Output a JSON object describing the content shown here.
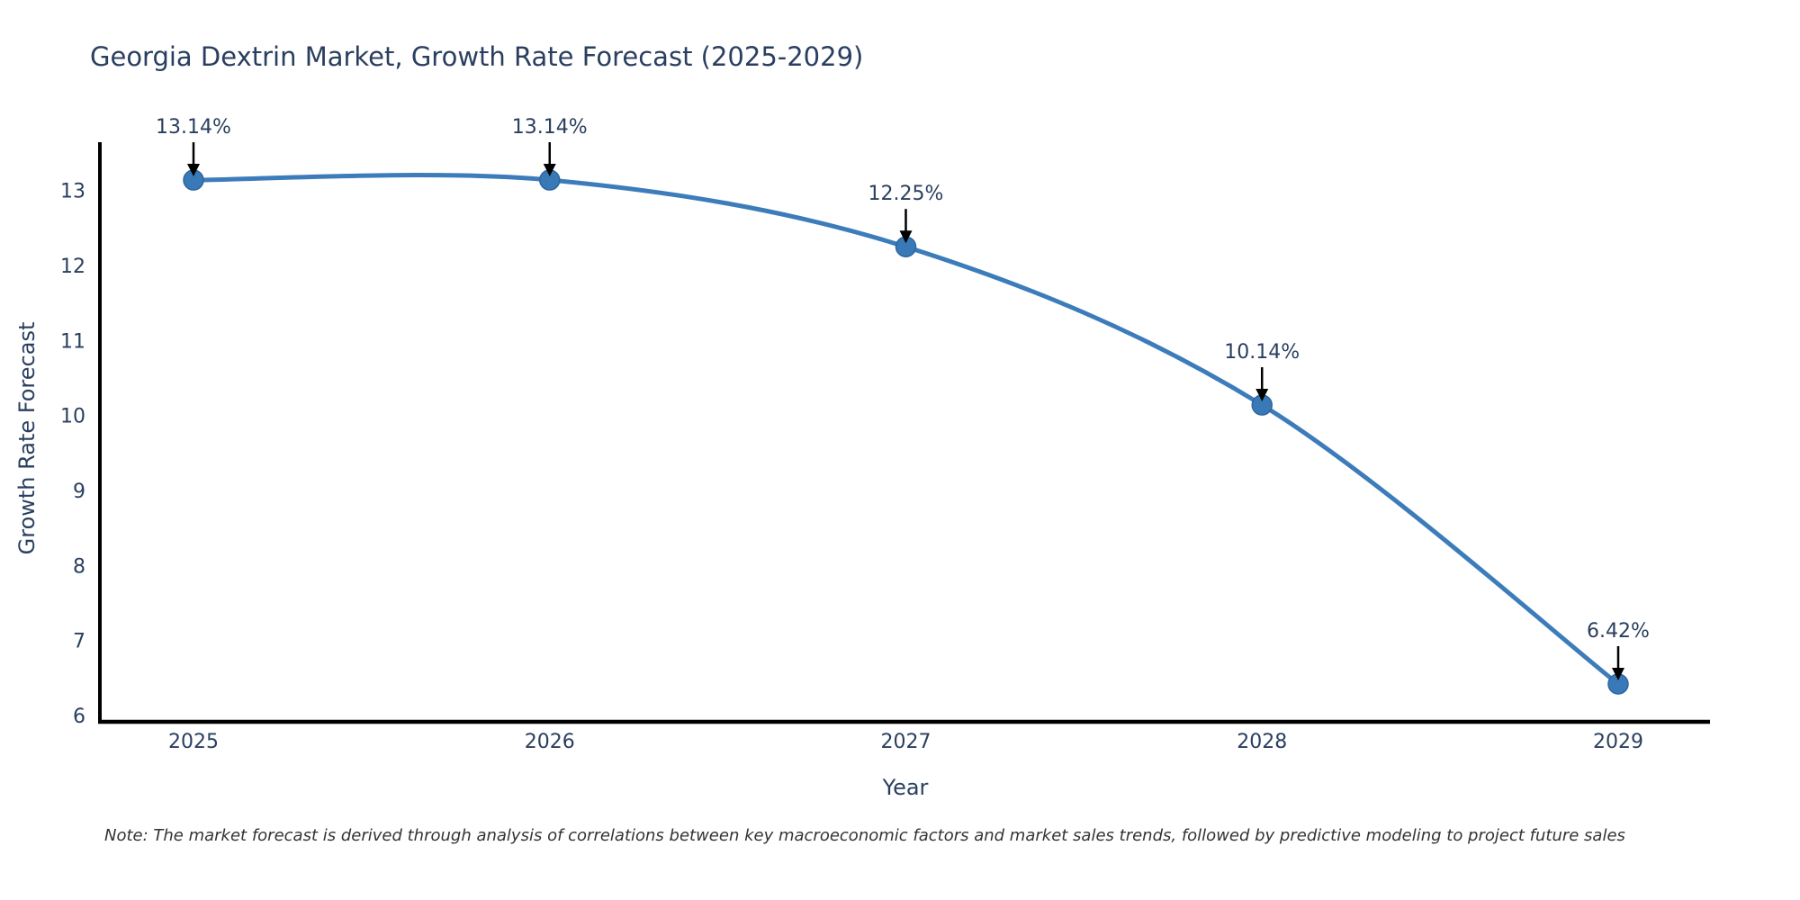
{
  "chart_data": {
    "type": "line",
    "title": "Georgia Dextrin Market, Growth Rate Forecast (2025-2029)",
    "xlabel": "Year",
    "ylabel": "Growth Rate Forecast",
    "categories": [
      "2025",
      "2026",
      "2027",
      "2028",
      "2029"
    ],
    "series": [
      {
        "name": "Growth Rate Forecast",
        "values": [
          13.14,
          13.14,
          12.25,
          10.14,
          6.42
        ]
      }
    ],
    "point_labels": [
      "13.14%",
      "13.14%",
      "12.25%",
      "10.14%",
      "6.42%"
    ],
    "yticks": [
      6,
      7,
      8,
      9,
      10,
      11,
      12,
      13
    ],
    "ylim": [
      5.9,
      13.7
    ],
    "grid": false,
    "legend_position": "none",
    "line_shape": "spline",
    "note": "Note: The market forecast is derived through analysis of correlations between key macroeconomic factors and market sales trends, followed by predictive modeling to project future sales",
    "colors": {
      "line": "#3d7cba",
      "marker": "#3a79b8",
      "marker_edge": "#2d659e",
      "text": "#2a3f5f",
      "axis": "#000000",
      "arrow": "#000000",
      "note_text": "#333333",
      "background": "#ffffff"
    }
  }
}
